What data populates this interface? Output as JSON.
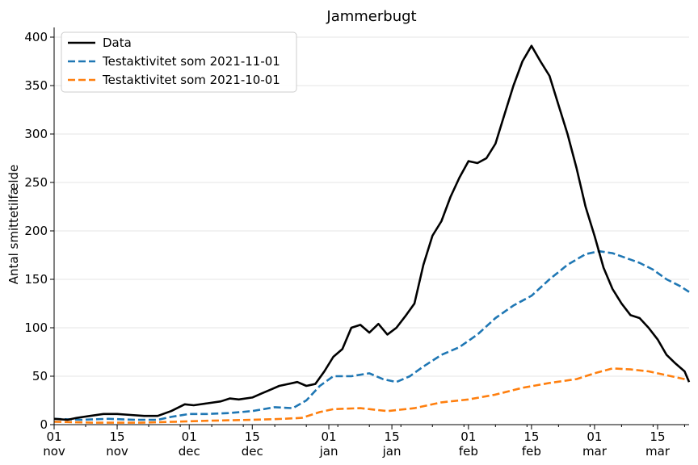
{
  "chart_data": {
    "type": "line",
    "title": "Jammerbugt",
    "xlabel": "",
    "ylabel": "Antal smittetilfælde",
    "ylim": [
      0,
      410
    ],
    "yticks": [
      0,
      50,
      100,
      150,
      200,
      250,
      300,
      350,
      400
    ],
    "xlim": [
      "2021-11-01",
      "2022-03-22"
    ],
    "xticks": [
      {
        "date": "2021-11-01",
        "day": "01",
        "month": "nov"
      },
      {
        "date": "2021-11-15",
        "day": "15",
        "month": "nov"
      },
      {
        "date": "2021-12-01",
        "day": "01",
        "month": "dec"
      },
      {
        "date": "2021-12-15",
        "day": "15",
        "month": "dec"
      },
      {
        "date": "2022-01-01",
        "day": "01",
        "month": "jan"
      },
      {
        "date": "2022-01-15",
        "day": "15",
        "month": "jan"
      },
      {
        "date": "2022-02-01",
        "day": "01",
        "month": "feb"
      },
      {
        "date": "2022-02-15",
        "day": "15",
        "month": "feb"
      },
      {
        "date": "2022-03-01",
        "day": "01",
        "month": "mar"
      },
      {
        "date": "2022-03-15",
        "day": "15",
        "month": "mar"
      }
    ],
    "grid": "horizontal",
    "legend": "top-left",
    "series": [
      {
        "name": "Data",
        "color": "#000000",
        "style": "solid",
        "points": [
          [
            "2021-11-01",
            6
          ],
          [
            "2021-11-04",
            5
          ],
          [
            "2021-11-06",
            7
          ],
          [
            "2021-11-09",
            9
          ],
          [
            "2021-11-12",
            11
          ],
          [
            "2021-11-15",
            11
          ],
          [
            "2021-11-18",
            10
          ],
          [
            "2021-11-21",
            9
          ],
          [
            "2021-11-24",
            9
          ],
          [
            "2021-11-27",
            14
          ],
          [
            "2021-11-30",
            21
          ],
          [
            "2021-12-02",
            20
          ],
          [
            "2021-12-05",
            22
          ],
          [
            "2021-12-08",
            24
          ],
          [
            "2021-12-10",
            27
          ],
          [
            "2021-12-12",
            26
          ],
          [
            "2021-12-15",
            28
          ],
          [
            "2021-12-17",
            32
          ],
          [
            "2021-12-19",
            36
          ],
          [
            "2021-12-21",
            40
          ],
          [
            "2021-12-23",
            42
          ],
          [
            "2021-12-25",
            44
          ],
          [
            "2021-12-27",
            40
          ],
          [
            "2021-12-29",
            42
          ],
          [
            "2021-12-31",
            55
          ],
          [
            "2022-01-02",
            70
          ],
          [
            "2022-01-04",
            78
          ],
          [
            "2022-01-06",
            100
          ],
          [
            "2022-01-08",
            103
          ],
          [
            "2022-01-10",
            95
          ],
          [
            "2022-01-12",
            104
          ],
          [
            "2022-01-14",
            93
          ],
          [
            "2022-01-16",
            100
          ],
          [
            "2022-01-18",
            112
          ],
          [
            "2022-01-20",
            125
          ],
          [
            "2022-01-22",
            165
          ],
          [
            "2022-01-24",
            195
          ],
          [
            "2022-01-26",
            210
          ],
          [
            "2022-01-28",
            235
          ],
          [
            "2022-01-30",
            255
          ],
          [
            "2022-02-01",
            272
          ],
          [
            "2022-02-03",
            270
          ],
          [
            "2022-02-05",
            275
          ],
          [
            "2022-02-07",
            290
          ],
          [
            "2022-02-09",
            320
          ],
          [
            "2022-02-11",
            350
          ],
          [
            "2022-02-13",
            375
          ],
          [
            "2022-02-15",
            391
          ],
          [
            "2022-02-17",
            375
          ],
          [
            "2022-02-19",
            360
          ],
          [
            "2022-02-21",
            330
          ],
          [
            "2022-02-23",
            300
          ],
          [
            "2022-02-25",
            265
          ],
          [
            "2022-02-27",
            225
          ],
          [
            "2022-03-01",
            195
          ],
          [
            "2022-03-03",
            162
          ],
          [
            "2022-03-05",
            140
          ],
          [
            "2022-03-07",
            125
          ],
          [
            "2022-03-09",
            113
          ],
          [
            "2022-03-11",
            110
          ],
          [
            "2022-03-13",
            100
          ],
          [
            "2022-03-15",
            88
          ],
          [
            "2022-03-17",
            72
          ],
          [
            "2022-03-19",
            63
          ],
          [
            "2022-03-21",
            55
          ],
          [
            "2022-03-22",
            44
          ]
        ]
      },
      {
        "name": "Testaktivitet som 2021-11-01",
        "color": "#1f77b4",
        "style": "dashed",
        "points": [
          [
            "2021-11-01",
            6
          ],
          [
            "2021-11-07",
            5
          ],
          [
            "2021-11-13",
            6
          ],
          [
            "2021-11-19",
            5
          ],
          [
            "2021-11-24",
            5
          ],
          [
            "2021-11-27",
            8
          ],
          [
            "2021-12-01",
            11
          ],
          [
            "2021-12-05",
            11
          ],
          [
            "2021-12-10",
            12
          ],
          [
            "2021-12-15",
            14
          ],
          [
            "2021-12-20",
            18
          ],
          [
            "2021-12-24",
            17
          ],
          [
            "2021-12-27",
            25
          ],
          [
            "2021-12-30",
            40
          ],
          [
            "2022-01-02",
            50
          ],
          [
            "2022-01-06",
            50
          ],
          [
            "2022-01-10",
            53
          ],
          [
            "2022-01-13",
            47
          ],
          [
            "2022-01-16",
            44
          ],
          [
            "2022-01-19",
            50
          ],
          [
            "2022-01-22",
            60
          ],
          [
            "2022-01-26",
            72
          ],
          [
            "2022-01-30",
            80
          ],
          [
            "2022-02-03",
            93
          ],
          [
            "2022-02-07",
            110
          ],
          [
            "2022-02-11",
            123
          ],
          [
            "2022-02-15",
            133
          ],
          [
            "2022-02-19",
            150
          ],
          [
            "2022-02-23",
            165
          ],
          [
            "2022-02-27",
            176
          ],
          [
            "2022-03-02",
            179
          ],
          [
            "2022-03-05",
            177
          ],
          [
            "2022-03-08",
            172
          ],
          [
            "2022-03-11",
            167
          ],
          [
            "2022-03-14",
            160
          ],
          [
            "2022-03-17",
            150
          ],
          [
            "2022-03-20",
            143
          ],
          [
            "2022-03-22",
            137
          ]
        ]
      },
      {
        "name": "Testaktivitet som 2021-10-01",
        "color": "#ff7f0e",
        "style": "dashed",
        "points": [
          [
            "2021-11-01",
            3
          ],
          [
            "2021-11-10",
            2
          ],
          [
            "2021-11-20",
            2
          ],
          [
            "2021-11-28",
            3
          ],
          [
            "2021-12-05",
            4
          ],
          [
            "2021-12-15",
            5
          ],
          [
            "2021-12-22",
            6
          ],
          [
            "2021-12-26",
            7
          ],
          [
            "2021-12-30",
            13
          ],
          [
            "2022-01-02",
            16
          ],
          [
            "2022-01-08",
            17
          ],
          [
            "2022-01-14",
            14
          ],
          [
            "2022-01-20",
            17
          ],
          [
            "2022-01-26",
            23
          ],
          [
            "2022-02-01",
            26
          ],
          [
            "2022-02-07",
            31
          ],
          [
            "2022-02-13",
            38
          ],
          [
            "2022-02-19",
            43
          ],
          [
            "2022-02-25",
            47
          ],
          [
            "2022-03-01",
            53
          ],
          [
            "2022-03-05",
            58
          ],
          [
            "2022-03-09",
            57
          ],
          [
            "2022-03-13",
            55
          ],
          [
            "2022-03-17",
            51
          ],
          [
            "2022-03-22",
            46
          ]
        ]
      }
    ]
  }
}
